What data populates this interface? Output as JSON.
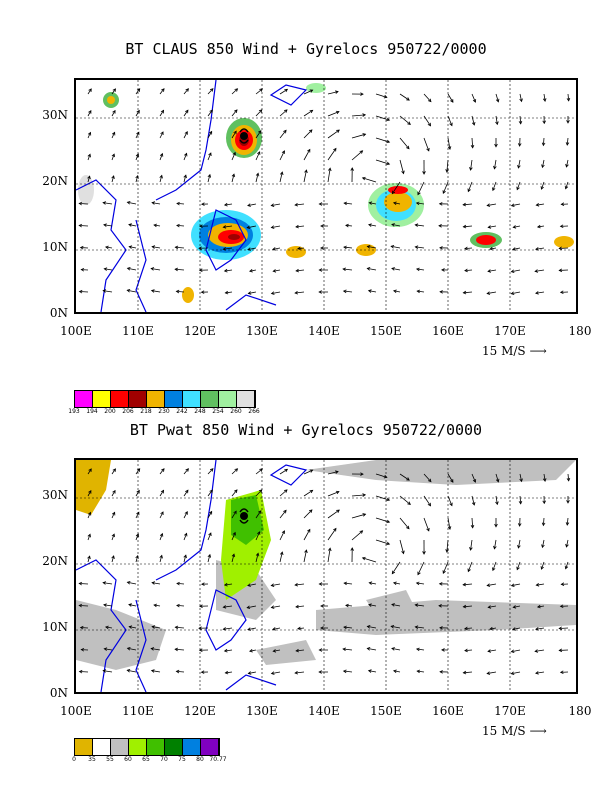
{
  "top": {
    "title": "BT CLAUS 850 Wind + Gyrelocs 950722/0000",
    "yticks": [
      "30N",
      "20N",
      "10N",
      "0N"
    ],
    "xticks": [
      "100E",
      "110E",
      "120E",
      "130E",
      "140E",
      "150E",
      "160E",
      "170E",
      "180"
    ],
    "ref_vector": "15 M/S",
    "colorbar_colors": [
      "#ff00ff",
      "#ffff00",
      "#ff0000",
      "#a00000",
      "#f0b400",
      "#0080e0",
      "#40e0ff",
      "#60c060",
      "#a0f0a0",
      "#e0e0e0"
    ],
    "colorbar_labels": [
      "193",
      "194",
      "200",
      "206",
      "218",
      "230",
      "242",
      "248",
      "254",
      "260",
      "266"
    ]
  },
  "bottom": {
    "title": "BT Pwat 850 Wind + Gyrelocs 950722/0000",
    "yticks": [
      "30N",
      "20N",
      "10N",
      "0N"
    ],
    "xticks": [
      "100E",
      "110E",
      "120E",
      "130E",
      "140E",
      "150E",
      "160E",
      "170E",
      "180"
    ],
    "ref_vector": "15 M/S",
    "colorbar_colors": [
      "#e0b400",
      "#ffffff",
      "#c0c0c0",
      "#a0f000",
      "#40c000",
      "#008000",
      "#0080e0",
      "#8000c0"
    ],
    "colorbar_labels": [
      "0",
      "35",
      "55",
      "60",
      "65",
      "70",
      "75",
      "80",
      "70.77"
    ]
  },
  "chart_data": [
    {
      "type": "map",
      "title": "BT CLAUS 850 Wind + Gyrelocs 950722/0000",
      "lon_range": [
        100,
        180
      ],
      "lat_range": [
        0,
        35
      ],
      "field": "CLAUS brightness temperature",
      "units_ref": "15 M/S"
    },
    {
      "type": "map",
      "title": "BT Pwat 850 Wind + Gyrelocs 950722/0000",
      "lon_range": [
        100,
        180
      ],
      "lat_range": [
        0,
        35
      ],
      "field": "Precipitable water",
      "units_ref": "15 M/S"
    }
  ]
}
